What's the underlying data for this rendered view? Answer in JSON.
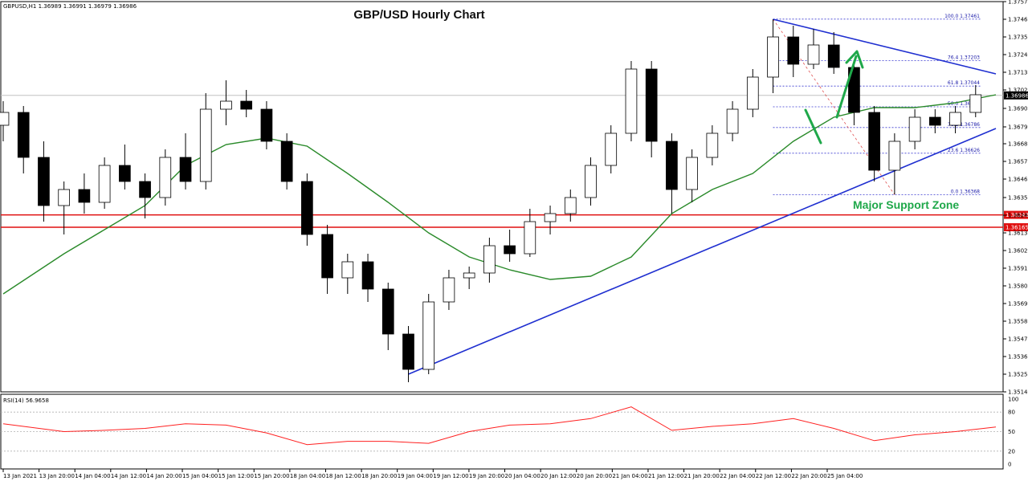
{
  "symbol_header": "GBPUSD,H1  1.36989 1.36991 1.36979 1.36986",
  "rsi_header": "RSI(14) 56.9658",
  "annotations": {
    "major_support_zone": "Major Support Zone"
  },
  "price_axis": {
    "ticks": [
      "1.37570",
      "1.37460",
      "1.37350",
      "1.37240",
      "1.37130",
      "1.37020",
      "1.36905",
      "1.36790",
      "1.36685",
      "1.36575",
      "1.36465",
      "1.36350",
      "1.36240",
      "1.36130",
      "1.36020",
      "1.35910",
      "1.35800",
      "1.35690",
      "1.35580",
      "1.35470",
      "1.35360",
      "1.35250",
      "1.35140"
    ],
    "current_price_label": "1.36986",
    "support_labels": [
      "1.36242",
      "1.36165"
    ]
  },
  "rsi_axis": {
    "ticks": [
      "100",
      "80",
      "50",
      "20",
      "0"
    ]
  },
  "time_axis": {
    "labels": [
      "13 Jan 2021",
      "13 Jan 20:00",
      "14 Jan 04:00",
      "14 Jan 12:00",
      "14 Jan 20:00",
      "15 Jan 04:00",
      "15 Jan 12:00",
      "15 Jan 20:00",
      "18 Jan 04:00",
      "18 Jan 12:00",
      "18 Jan 20:00",
      "19 Jan 04:00",
      "19 Jan 12:00",
      "19 Jan 20:00",
      "20 Jan 04:00",
      "20 Jan 12:00",
      "20 Jan 20:00",
      "21 Jan 04:00",
      "21 Jan 12:00",
      "21 Jan 20:00",
      "22 Jan 04:00",
      "22 Jan 12:00",
      "22 Jan 20:00",
      "25 Jan 04:00"
    ]
  },
  "fibonacci": [
    {
      "label": "100.0  1.37461",
      "price": 1.37461
    },
    {
      "label": "76.4  1.37203",
      "price": 1.37203
    },
    {
      "label": "61.8  1.37044",
      "price": 1.37044
    },
    {
      "label": "50.0  1.36915",
      "price": 1.36915
    },
    {
      "label": "38.2  1.36786",
      "price": 1.36786
    },
    {
      "label": "23.6  1.36626",
      "price": 1.36626
    },
    {
      "label": "0.0  1.36368",
      "price": 1.36368
    }
  ],
  "colors": {
    "bullish": "#ffffff",
    "bearish": "#000000",
    "ma": "#2a8a2a",
    "trendline": "#1f2fd0",
    "support": "#e01010",
    "fib": "#3a3ad0",
    "rsi": "#ff2020",
    "arrow": "#1fa84a"
  },
  "chart_data": {
    "type": "candlestick",
    "title": "GBP/USD Hourly Chart",
    "symbol": "GBPUSD",
    "timeframe": "H1",
    "ylim": [
      1.3514,
      1.3757
    ],
    "x_range": [
      "13 Jan 2021",
      "25 Jan 04:00"
    ],
    "candles": [
      {
        "t": "13 Jan 2021 00:00",
        "o": 1.368,
        "h": 1.3695,
        "l": 1.367,
        "c": 1.3688
      },
      {
        "t": "13 Jan 04:00",
        "o": 1.3688,
        "h": 1.3692,
        "l": 1.365,
        "c": 1.366
      },
      {
        "t": "13 Jan 08:00",
        "o": 1.366,
        "h": 1.367,
        "l": 1.362,
        "c": 1.363
      },
      {
        "t": "13 Jan 12:00",
        "o": 1.363,
        "h": 1.3645,
        "l": 1.3612,
        "c": 1.364
      },
      {
        "t": "13 Jan 16:00",
        "o": 1.364,
        "h": 1.365,
        "l": 1.3625,
        "c": 1.3632
      },
      {
        "t": "13 Jan 20:00",
        "o": 1.3632,
        "h": 1.366,
        "l": 1.3628,
        "c": 1.3655
      },
      {
        "t": "14 Jan 00:00",
        "o": 1.3655,
        "h": 1.3668,
        "l": 1.364,
        "c": 1.3645
      },
      {
        "t": "14 Jan 04:00",
        "o": 1.3645,
        "h": 1.365,
        "l": 1.3622,
        "c": 1.3635
      },
      {
        "t": "14 Jan 08:00",
        "o": 1.3635,
        "h": 1.3665,
        "l": 1.363,
        "c": 1.366
      },
      {
        "t": "14 Jan 12:00",
        "o": 1.366,
        "h": 1.3675,
        "l": 1.364,
        "c": 1.3645
      },
      {
        "t": "14 Jan 16:00",
        "o": 1.3645,
        "h": 1.37,
        "l": 1.364,
        "c": 1.369
      },
      {
        "t": "14 Jan 20:00",
        "o": 1.369,
        "h": 1.3708,
        "l": 1.368,
        "c": 1.3695
      },
      {
        "t": "15 Jan 00:00",
        "o": 1.3695,
        "h": 1.3702,
        "l": 1.3685,
        "c": 1.369
      },
      {
        "t": "15 Jan 04:00",
        "o": 1.369,
        "h": 1.3695,
        "l": 1.3665,
        "c": 1.367
      },
      {
        "t": "15 Jan 08:00",
        "o": 1.367,
        "h": 1.3675,
        "l": 1.364,
        "c": 1.3645
      },
      {
        "t": "15 Jan 12:00",
        "o": 1.3645,
        "h": 1.365,
        "l": 1.3605,
        "c": 1.3612
      },
      {
        "t": "15 Jan 16:00",
        "o": 1.3612,
        "h": 1.3618,
        "l": 1.3575,
        "c": 1.3585
      },
      {
        "t": "15 Jan 20:00",
        "o": 1.3585,
        "h": 1.36,
        "l": 1.3575,
        "c": 1.3595
      },
      {
        "t": "18 Jan 00:00",
        "o": 1.3595,
        "h": 1.36,
        "l": 1.357,
        "c": 1.3578
      },
      {
        "t": "18 Jan 04:00",
        "o": 1.3578,
        "h": 1.3582,
        "l": 1.354,
        "c": 1.355
      },
      {
        "t": "18 Jan 08:00",
        "o": 1.355,
        "h": 1.3555,
        "l": 1.352,
        "c": 1.3528
      },
      {
        "t": "18 Jan 12:00",
        "o": 1.3528,
        "h": 1.3575,
        "l": 1.3525,
        "c": 1.357
      },
      {
        "t": "18 Jan 16:00",
        "o": 1.357,
        "h": 1.359,
        "l": 1.3565,
        "c": 1.3585
      },
      {
        "t": "18 Jan 20:00",
        "o": 1.3585,
        "h": 1.3592,
        "l": 1.3578,
        "c": 1.3588
      },
      {
        "t": "19 Jan 00:00",
        "o": 1.3588,
        "h": 1.361,
        "l": 1.3582,
        "c": 1.3605
      },
      {
        "t": "19 Jan 04:00",
        "o": 1.3605,
        "h": 1.3615,
        "l": 1.3595,
        "c": 1.36
      },
      {
        "t": "19 Jan 08:00",
        "o": 1.36,
        "h": 1.3628,
        "l": 1.3598,
        "c": 1.362
      },
      {
        "t": "19 Jan 12:00",
        "o": 1.362,
        "h": 1.363,
        "l": 1.3612,
        "c": 1.3625
      },
      {
        "t": "19 Jan 16:00",
        "o": 1.3625,
        "h": 1.364,
        "l": 1.362,
        "c": 1.3635
      },
      {
        "t": "19 Jan 20:00",
        "o": 1.3635,
        "h": 1.366,
        "l": 1.363,
        "c": 1.3655
      },
      {
        "t": "20 Jan 00:00",
        "o": 1.3655,
        "h": 1.368,
        "l": 1.365,
        "c": 1.3675
      },
      {
        "t": "20 Jan 04:00",
        "o": 1.3675,
        "h": 1.372,
        "l": 1.367,
        "c": 1.3715
      },
      {
        "t": "20 Jan 08:00",
        "o": 1.3715,
        "h": 1.372,
        "l": 1.366,
        "c": 1.367
      },
      {
        "t": "20 Jan 12:00",
        "o": 1.367,
        "h": 1.3675,
        "l": 1.3625,
        "c": 1.364
      },
      {
        "t": "20 Jan 16:00",
        "o": 1.364,
        "h": 1.3665,
        "l": 1.3632,
        "c": 1.366
      },
      {
        "t": "20 Jan 20:00",
        "o": 1.366,
        "h": 1.368,
        "l": 1.3655,
        "c": 1.3675
      },
      {
        "t": "21 Jan 00:00",
        "o": 1.3675,
        "h": 1.3695,
        "l": 1.367,
        "c": 1.369
      },
      {
        "t": "21 Jan 04:00",
        "o": 1.369,
        "h": 1.3715,
        "l": 1.3685,
        "c": 1.371
      },
      {
        "t": "21 Jan 08:00",
        "o": 1.371,
        "h": 1.3746,
        "l": 1.37,
        "c": 1.3735
      },
      {
        "t": "21 Jan 12:00",
        "o": 1.3735,
        "h": 1.3742,
        "l": 1.371,
        "c": 1.3718
      },
      {
        "t": "21 Jan 16:00",
        "o": 1.3718,
        "h": 1.374,
        "l": 1.3715,
        "c": 1.373
      },
      {
        "t": "21 Jan 20:00",
        "o": 1.373,
        "h": 1.3738,
        "l": 1.3712,
        "c": 1.3716
      },
      {
        "t": "22 Jan 00:00",
        "o": 1.3716,
        "h": 1.372,
        "l": 1.368,
        "c": 1.3688
      },
      {
        "t": "22 Jan 04:00",
        "o": 1.3688,
        "h": 1.3692,
        "l": 1.3645,
        "c": 1.3652
      },
      {
        "t": "22 Jan 08:00",
        "o": 1.3652,
        "h": 1.3675,
        "l": 1.3637,
        "c": 1.367
      },
      {
        "t": "22 Jan 12:00",
        "o": 1.367,
        "h": 1.369,
        "l": 1.3665,
        "c": 1.3685
      },
      {
        "t": "22 Jan 16:00",
        "o": 1.3685,
        "h": 1.369,
        "l": 1.3675,
        "c": 1.368
      },
      {
        "t": "22 Jan 20:00",
        "o": 1.368,
        "h": 1.3692,
        "l": 1.3675,
        "c": 1.3688
      },
      {
        "t": "25 Jan 00:00",
        "o": 1.3688,
        "h": 1.3705,
        "l": 1.3685,
        "c": 1.3699
      }
    ],
    "ma": [
      {
        "t": "13 Jan 2021 00:00",
        "v": 1.3575
      },
      {
        "t": "13 Jan 12:00",
        "v": 1.36
      },
      {
        "t": "13 Jan 20:00",
        "v": 1.3615
      },
      {
        "t": "14 Jan 04:00",
        "v": 1.363
      },
      {
        "t": "14 Jan 12:00",
        "v": 1.3655
      },
      {
        "t": "14 Jan 20:00",
        "v": 1.3668
      },
      {
        "t": "15 Jan 04:00",
        "v": 1.3672
      },
      {
        "t": "15 Jan 12:00",
        "v": 1.3667
      },
      {
        "t": "15 Jan 20:00",
        "v": 1.365
      },
      {
        "t": "18 Jan 04:00",
        "v": 1.3632
      },
      {
        "t": "18 Jan 12:00",
        "v": 1.3613
      },
      {
        "t": "18 Jan 20:00",
        "v": 1.3598
      },
      {
        "t": "19 Jan 04:00",
        "v": 1.359
      },
      {
        "t": "19 Jan 12:00",
        "v": 1.3584
      },
      {
        "t": "19 Jan 20:00",
        "v": 1.3586
      },
      {
        "t": "20 Jan 04:00",
        "v": 1.3598
      },
      {
        "t": "20 Jan 12:00",
        "v": 1.3625
      },
      {
        "t": "20 Jan 20:00",
        "v": 1.364
      },
      {
        "t": "21 Jan 04:00",
        "v": 1.365
      },
      {
        "t": "21 Jan 12:00",
        "v": 1.367
      },
      {
        "t": "21 Jan 20:00",
        "v": 1.3685
      },
      {
        "t": "22 Jan 04:00",
        "v": 1.3691
      },
      {
        "t": "22 Jan 12:00",
        "v": 1.3691
      },
      {
        "t": "22 Jan 20:00",
        "v": 1.3694
      },
      {
        "t": "25 Jan 04:00",
        "v": 1.3699
      }
    ],
    "trendlines": [
      {
        "name": "support",
        "from": {
          "t": "18 Jan 08:00",
          "v": 1.3525
        },
        "to": {
          "t": "25 Jan 04:00",
          "v": 1.3678
        }
      },
      {
        "name": "resistance",
        "from": {
          "t": "21 Jan 08:00",
          "v": 1.3746
        },
        "to": {
          "t": "25 Jan 04:00",
          "v": 1.3712
        }
      }
    ],
    "support_levels": [
      1.36242,
      1.36165
    ],
    "rsi": {
      "period": 14,
      "last": 56.9658,
      "ylim": [
        0,
        100
      ],
      "levels": [
        80,
        50,
        20
      ],
      "points": [
        {
          "t": "13 Jan 2021 00:00",
          "v": 62
        },
        {
          "t": "13 Jan 12:00",
          "v": 50
        },
        {
          "t": "13 Jan 20:00",
          "v": 52
        },
        {
          "t": "14 Jan 04:00",
          "v": 55
        },
        {
          "t": "14 Jan 12:00",
          "v": 62
        },
        {
          "t": "14 Jan 20:00",
          "v": 60
        },
        {
          "t": "15 Jan 04:00",
          "v": 48
        },
        {
          "t": "15 Jan 12:00",
          "v": 30
        },
        {
          "t": "15 Jan 20:00",
          "v": 35
        },
        {
          "t": "18 Jan 04:00",
          "v": 35
        },
        {
          "t": "18 Jan 12:00",
          "v": 32
        },
        {
          "t": "18 Jan 20:00",
          "v": 50
        },
        {
          "t": "19 Jan 04:00",
          "v": 60
        },
        {
          "t": "19 Jan 12:00",
          "v": 62
        },
        {
          "t": "19 Jan 20:00",
          "v": 70
        },
        {
          "t": "20 Jan 04:00",
          "v": 88
        },
        {
          "t": "20 Jan 12:00",
          "v": 52
        },
        {
          "t": "20 Jan 20:00",
          "v": 58
        },
        {
          "t": "21 Jan 04:00",
          "v": 62
        },
        {
          "t": "21 Jan 12:00",
          "v": 70
        },
        {
          "t": "21 Jan 20:00",
          "v": 55
        },
        {
          "t": "22 Jan 04:00",
          "v": 36
        },
        {
          "t": "22 Jan 12:00",
          "v": 45
        },
        {
          "t": "22 Jan 20:00",
          "v": 50
        },
        {
          "t": "25 Jan 04:00",
          "v": 57
        }
      ]
    }
  }
}
